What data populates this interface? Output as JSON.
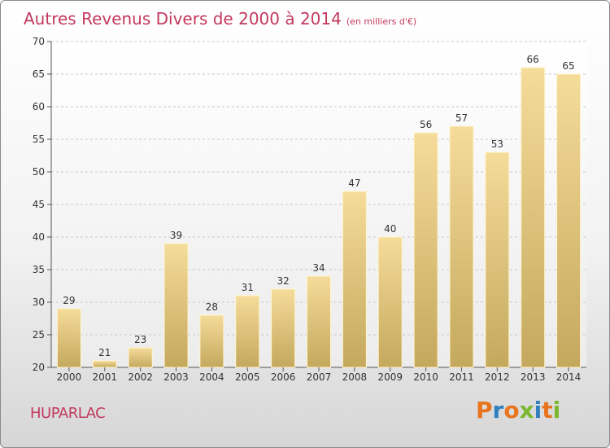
{
  "header": {
    "title": "Autres Revenus Divers de 2000 à 2014",
    "subtitle": "(en milliers d'€)"
  },
  "footer": {
    "commune": "HUPARLAC",
    "brand": {
      "letters": [
        "P",
        "r",
        "o",
        "x",
        "i",
        "t",
        "i"
      ],
      "colors": [
        "#e8741e",
        "#2f7fc1",
        "#e8741e",
        "#7cb82f",
        "#2f7fc1",
        "#e8741e",
        "#7cb82f"
      ]
    }
  },
  "chart_data": {
    "type": "bar",
    "title": "Autres Revenus Divers de 2000 à 2014",
    "subtitle": "(en milliers d'€)",
    "xlabel": "",
    "ylabel": "",
    "categories": [
      "2000",
      "2001",
      "2002",
      "2003",
      "2004",
      "2005",
      "2006",
      "2007",
      "2008",
      "2009",
      "2010",
      "2011",
      "2012",
      "2013",
      "2014"
    ],
    "values": [
      29,
      21,
      23,
      39,
      28,
      31,
      32,
      34,
      47,
      40,
      56,
      57,
      53,
      66,
      65
    ],
    "ylim": [
      20,
      70
    ],
    "yticks": [
      20,
      25,
      30,
      35,
      40,
      45,
      50,
      55,
      60,
      65,
      70
    ],
    "grid": true,
    "colors": {
      "bar_top": "#f5dc9a",
      "bar_bottom": "#c4a85e",
      "grid": "#c8c8c8"
    }
  }
}
